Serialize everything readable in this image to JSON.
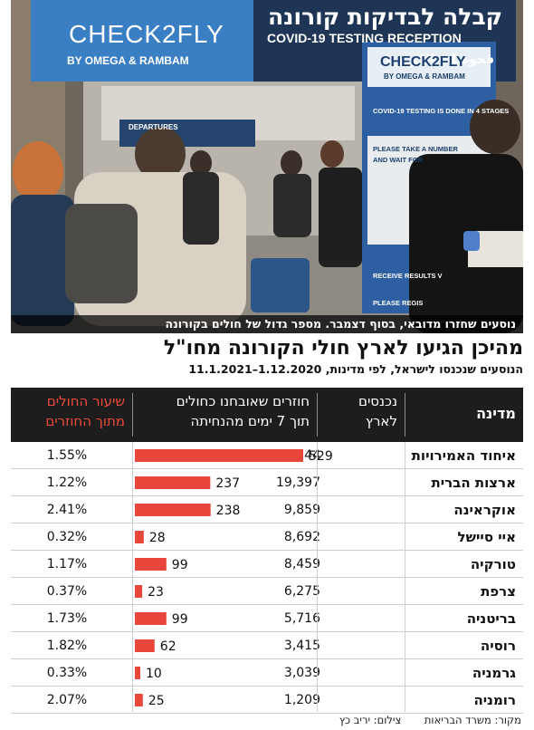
{
  "photo": {
    "sign_brand": "CHECK2FLY",
    "sign_brand_sub": "BY OMEGA & RAMBAM",
    "sign_hebrew": "קבלה לבדיקות קורונה",
    "sign_english": "COVID-19 TESTING RECEPTION",
    "sign_arabic": "فحوصات الكورونا",
    "kiosk_brand": "CHECK2FLY",
    "kiosk_brand_sub": "BY OMEGA & RAMBAM",
    "kiosk_line1": "COVID-19 TESTING IS DONE IN 4 STAGES",
    "kiosk_line2": "PLEASE TAKE A NUMBER",
    "kiosk_line3": "AND WAIT FOR",
    "kiosk_line4": "RECEIVE RESULTS V",
    "kiosk_line5": "PLEASE REGIS",
    "departures_sign": "DEPARTURES",
    "caption": "נוסעים שחזרו מדובאי, בסוף דצמבר. מספר גדול של חולים בקורונה"
  },
  "headline": "מהיכן הגיעו לארץ חולי הקורונה מחו\"ל",
  "subhead": "הנוסעים שנכנסו לישראל, לפי מדינות, 1.12.2020–11.1.2021",
  "table": {
    "headers": {
      "country": "מדינה",
      "entered_line1": "נכנסים",
      "entered_line2": "לארץ",
      "returned_line1": "חוזרים שאובחנו כחולים",
      "returned_line2": "תוך 7 ימים מהנחיתה",
      "rate_line1": "שיעור החולים",
      "rate_line2": "מתוך החוזרים"
    }
  },
  "chart_data": {
    "type": "table",
    "columns": [
      "מדינה",
      "נכנסים לארץ",
      "חוזרים שאובחנו כחולים תוך 7 ימים מהנחיתה",
      "שיעור החולים מתוך החוזרים"
    ],
    "bar_color": "#e8463a",
    "bar_max": 529,
    "rows": [
      {
        "country": "איחוד האמירויות",
        "entered": "34,144",
        "sick": 529,
        "rate": "1.55%"
      },
      {
        "country": "ארצות הברית",
        "entered": "19,397",
        "sick": 237,
        "rate": "1.22%"
      },
      {
        "country": "אוקראינה",
        "entered": "9,859",
        "sick": 238,
        "rate": "2.41%"
      },
      {
        "country": "איי סיישל",
        "entered": "8,692",
        "sick": 28,
        "rate": "0.32%"
      },
      {
        "country": "טורקיה",
        "entered": "8,459",
        "sick": 99,
        "rate": "1.17%"
      },
      {
        "country": "צרפת",
        "entered": "6,275",
        "sick": 23,
        "rate": "0.37%"
      },
      {
        "country": "בריטניה",
        "entered": "5,716",
        "sick": 99,
        "rate": "1.73%"
      },
      {
        "country": "רוסיה",
        "entered": "3,415",
        "sick": 62,
        "rate": "1.82%"
      },
      {
        "country": "גרמניה",
        "entered": "3,039",
        "sick": 10,
        "rate": "0.33%"
      },
      {
        "country": "רומניה",
        "entered": "1,209",
        "sick": 25,
        "rate": "2.07%"
      }
    ]
  },
  "footer": {
    "source": "מקור: משרד הבריאות",
    "photo_credit": "צילום: יריב כץ"
  }
}
